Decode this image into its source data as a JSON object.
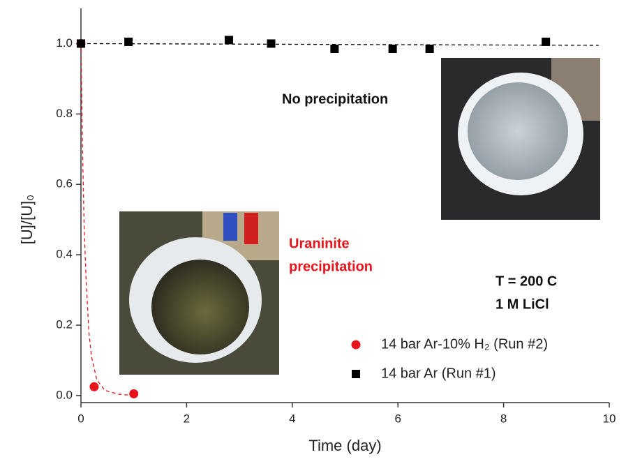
{
  "chart_data": {
    "type": "scatter",
    "x_label": "Time (day)",
    "y_label": "[U]/[U]₀",
    "xlim": [
      0,
      10
    ],
    "ylim": [
      -0.02,
      1.1
    ],
    "xticks": [
      0,
      2,
      4,
      6,
      8,
      10
    ],
    "yticks": [
      {
        "value": 0,
        "label": "0.0"
      },
      0.2,
      0.4,
      0.6,
      0.8,
      {
        "value": 1,
        "label": "1.0"
      }
    ],
    "series": [
      {
        "name": "14 bar Ar-10% H₂ (Run #2)",
        "color": "#e8141c",
        "marker": "circle",
        "x": [
          0,
          0.25,
          1.0
        ],
        "values": [
          1.0,
          0.025,
          0.005
        ]
      },
      {
        "name": "14 bar Ar (Run #1)",
        "color": "#000000",
        "marker": "square",
        "x": [
          0,
          0.9,
          2.8,
          3.6,
          4.8,
          5.9,
          6.6,
          8.8
        ],
        "values": [
          1.0,
          1.005,
          1.01,
          1.0,
          0.985,
          0.985,
          0.985,
          1.005
        ]
      }
    ],
    "fit_lines": [
      {
        "color": "#e8141c",
        "x": [
          0,
          0.03,
          0.06,
          0.1,
          0.15,
          0.2,
          0.3,
          0.45,
          0.7,
          1.0
        ],
        "values": [
          1.0,
          0.7,
          0.48,
          0.32,
          0.18,
          0.11,
          0.045,
          0.015,
          0.004,
          0.0
        ]
      },
      {
        "color": "#000000",
        "x": [
          0,
          9.8
        ],
        "values": [
          1.0,
          0.995
        ]
      }
    ],
    "annotations": [
      {
        "text": "No precipitation",
        "color": "#111111"
      },
      {
        "text": "Uraninite",
        "color": "#e8141c"
      },
      {
        "text": "precipitation",
        "color": "#e8141c"
      },
      {
        "text": "T = 200  C",
        "color": "#111111"
      },
      {
        "text": "1 M LiCl",
        "color": "#111111"
      }
    ]
  }
}
